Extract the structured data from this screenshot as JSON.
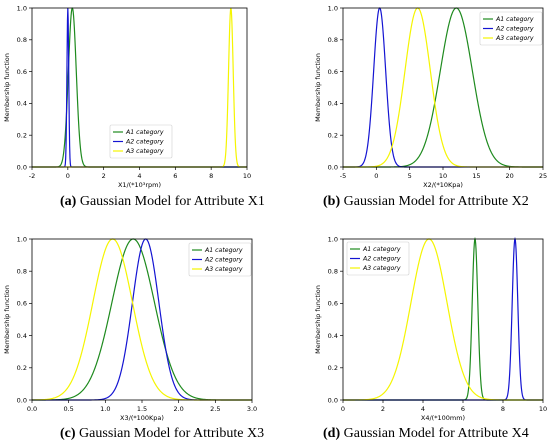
{
  "captions": [
    {
      "letter": "(a)",
      "text": " Gaussian Model for Attribute X1"
    },
    {
      "letter": "(b)",
      "text": " Gaussian Model for Attribute X2"
    },
    {
      "letter": "(c)",
      "text": " Gaussian Model for Attribute X3"
    },
    {
      "letter": "(d)",
      "text": " Gaussian Model for Attribute X4"
    }
  ],
  "colors": {
    "A1": "#1e8a1e",
    "A2": "#1414d2",
    "A3": "#f5f500"
  },
  "chart_data": [
    {
      "type": "line",
      "xlabel": "X1/(*10³rpm)",
      "ylabel": "Membership function",
      "xlim": [
        -2,
        10
      ],
      "ylim": [
        0,
        1.0
      ],
      "xticks": [
        -2,
        0,
        2,
        4,
        6,
        8,
        10
      ],
      "yticks": [
        0.0,
        0.2,
        0.4,
        0.6,
        0.8,
        1.0
      ],
      "legend_position": "bottom-center",
      "series": [
        {
          "name": "A1 category",
          "mean": 0.25,
          "sigma": 0.22
        },
        {
          "name": "A2 category",
          "mean": 0.0,
          "sigma": 0.05
        },
        {
          "name": "A3 category",
          "mean": 9.1,
          "sigma": 0.13
        }
      ]
    },
    {
      "type": "line",
      "xlabel": "X2/(*10Kpa)",
      "ylabel": "Membership function",
      "xlim": [
        -5,
        25
      ],
      "ylim": [
        0,
        1.0
      ],
      "xticks": [
        -5,
        0,
        5,
        10,
        15,
        20,
        25
      ],
      "yticks": [
        0.0,
        0.2,
        0.4,
        0.6,
        0.8,
        1.0
      ],
      "legend_position": "top-right",
      "series": [
        {
          "name": "A1 category",
          "mean": 12.0,
          "sigma": 2.4
        },
        {
          "name": "A2 category",
          "mean": 0.5,
          "sigma": 0.9
        },
        {
          "name": "A3 category",
          "mean": 6.2,
          "sigma": 1.9
        }
      ]
    },
    {
      "type": "line",
      "xlabel": "X3/(*100Kpa)",
      "ylabel": "Membership function",
      "xlim": [
        0.0,
        3.0
      ],
      "ylim": [
        0,
        1.0
      ],
      "xticks": [
        0.0,
        0.5,
        1.0,
        1.5,
        2.0,
        2.5,
        3.0
      ],
      "yticks": [
        0.0,
        0.2,
        0.4,
        0.6,
        0.8,
        1.0
      ],
      "legend_position": "top-right",
      "series": [
        {
          "name": "A1 category",
          "mean": 1.38,
          "sigma": 0.29
        },
        {
          "name": "A2 category",
          "mean": 1.55,
          "sigma": 0.18
        },
        {
          "name": "A3 category",
          "mean": 1.1,
          "sigma": 0.27
        }
      ]
    },
    {
      "type": "line",
      "xlabel": "X4/(*100mm)",
      "ylabel": "Membership function",
      "xlim": [
        0,
        10
      ],
      "ylim": [
        0,
        1.0
      ],
      "xticks": [
        0,
        2,
        4,
        6,
        8,
        10
      ],
      "yticks": [
        0.0,
        0.2,
        0.4,
        0.6,
        0.8,
        1.0
      ],
      "legend_position": "top-left",
      "series": [
        {
          "name": "A1 category",
          "mean": 6.6,
          "sigma": 0.14
        },
        {
          "name": "A2 category",
          "mean": 8.6,
          "sigma": 0.14
        },
        {
          "name": "A3 category",
          "mean": 4.3,
          "sigma": 0.9
        }
      ]
    }
  ]
}
